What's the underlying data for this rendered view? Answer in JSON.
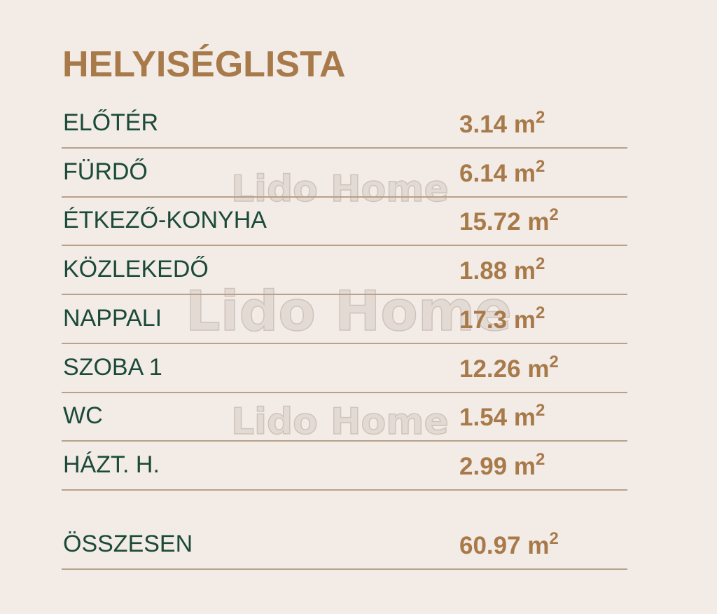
{
  "title": "HELYISÉGLISTA",
  "unit": "m",
  "unit_exp": "2",
  "rooms": [
    {
      "name": "ELŐTÉR",
      "area": "3.14"
    },
    {
      "name": "FÜRDŐ",
      "area": "6.14"
    },
    {
      "name": "ÉTKEZŐ-KONYHA",
      "area": "15.72"
    },
    {
      "name": "KÖZLEKEDŐ",
      "area": "1.88"
    },
    {
      "name": "NAPPALI",
      "area": "17.3"
    },
    {
      "name": "SZOBA 1",
      "area": "12.26"
    },
    {
      "name": "WC",
      "area": "1.54"
    },
    {
      "name": "HÁZT. H.",
      "area": "2.99"
    }
  ],
  "total": {
    "name": "ÖSSZESEN",
    "area": "60.97"
  },
  "watermark": "Lido Home",
  "colors": {
    "background": "#f2ebe6",
    "accent": "#a87a4a",
    "text": "#1b4a39",
    "divider": "#b9a089"
  }
}
